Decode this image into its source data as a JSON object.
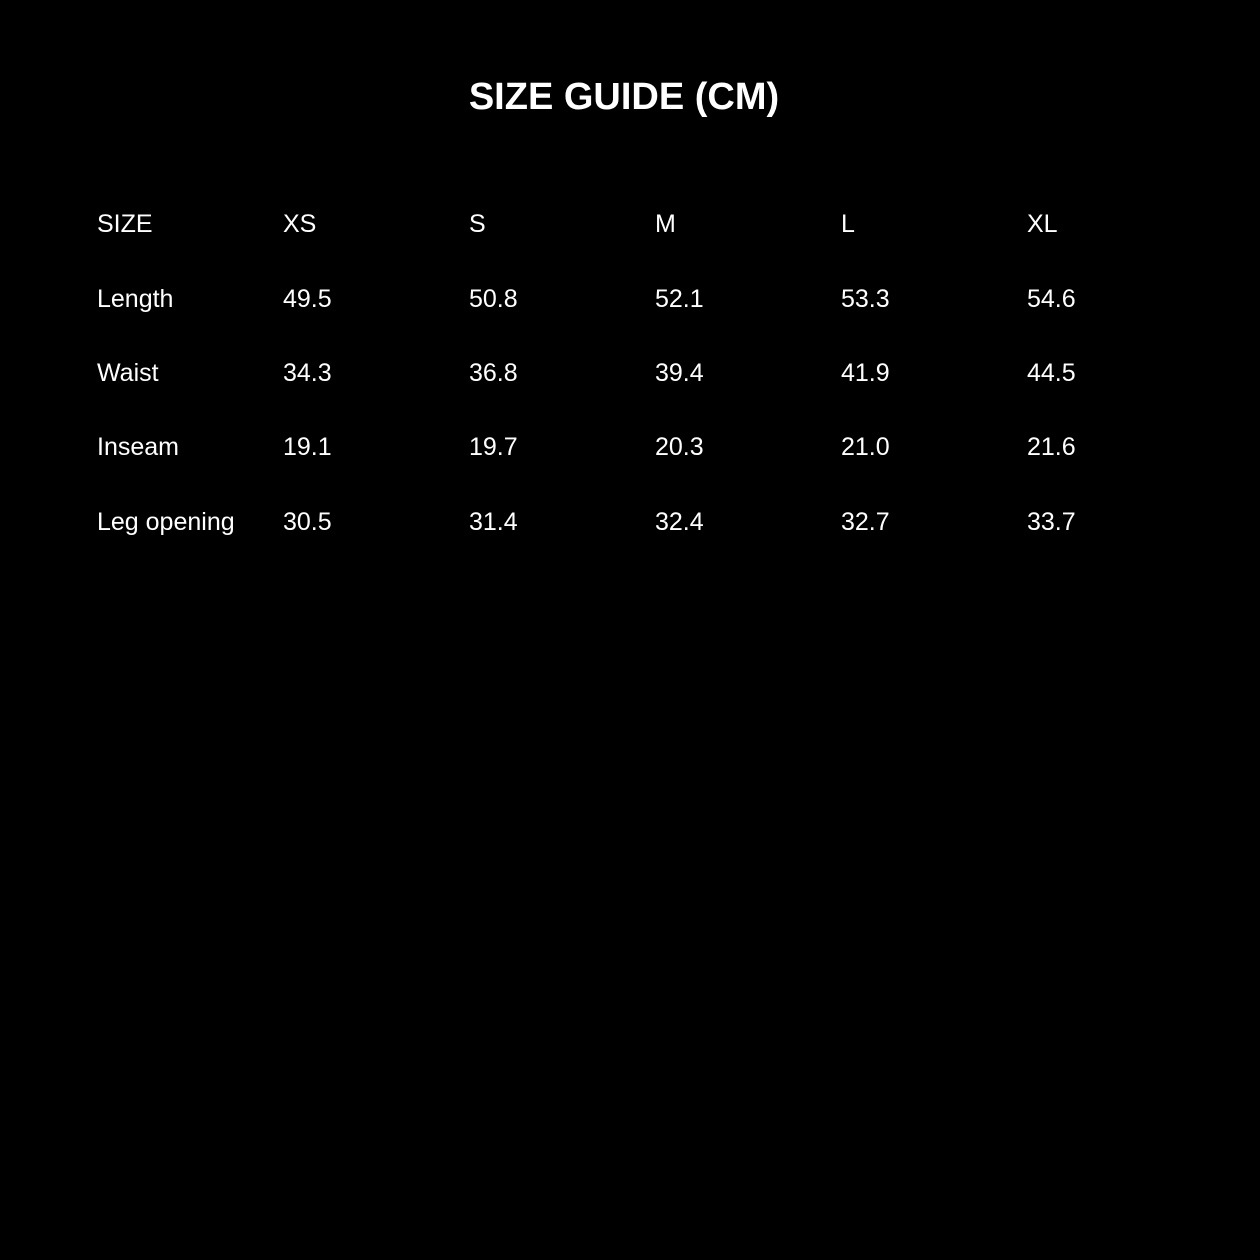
{
  "title": "SIZE GUIDE (CM)",
  "table": {
    "header": [
      "SIZE",
      "XS",
      "S",
      "M",
      "L",
      "XL"
    ],
    "rows": [
      [
        "Length",
        "49.5",
        "50.8",
        "52.1",
        "53.3",
        "54.6"
      ],
      [
        "Waist",
        "34.3",
        "36.8",
        "39.4",
        "41.9",
        "44.5"
      ],
      [
        "Inseam",
        "19.1",
        "19.7",
        "20.3",
        "21.0",
        "21.6"
      ],
      [
        "Leg opening",
        "30.5",
        "31.4",
        "32.4",
        "32.7",
        "33.7"
      ]
    ]
  },
  "colors": {
    "background": "#000000",
    "text": "#ffffff"
  }
}
